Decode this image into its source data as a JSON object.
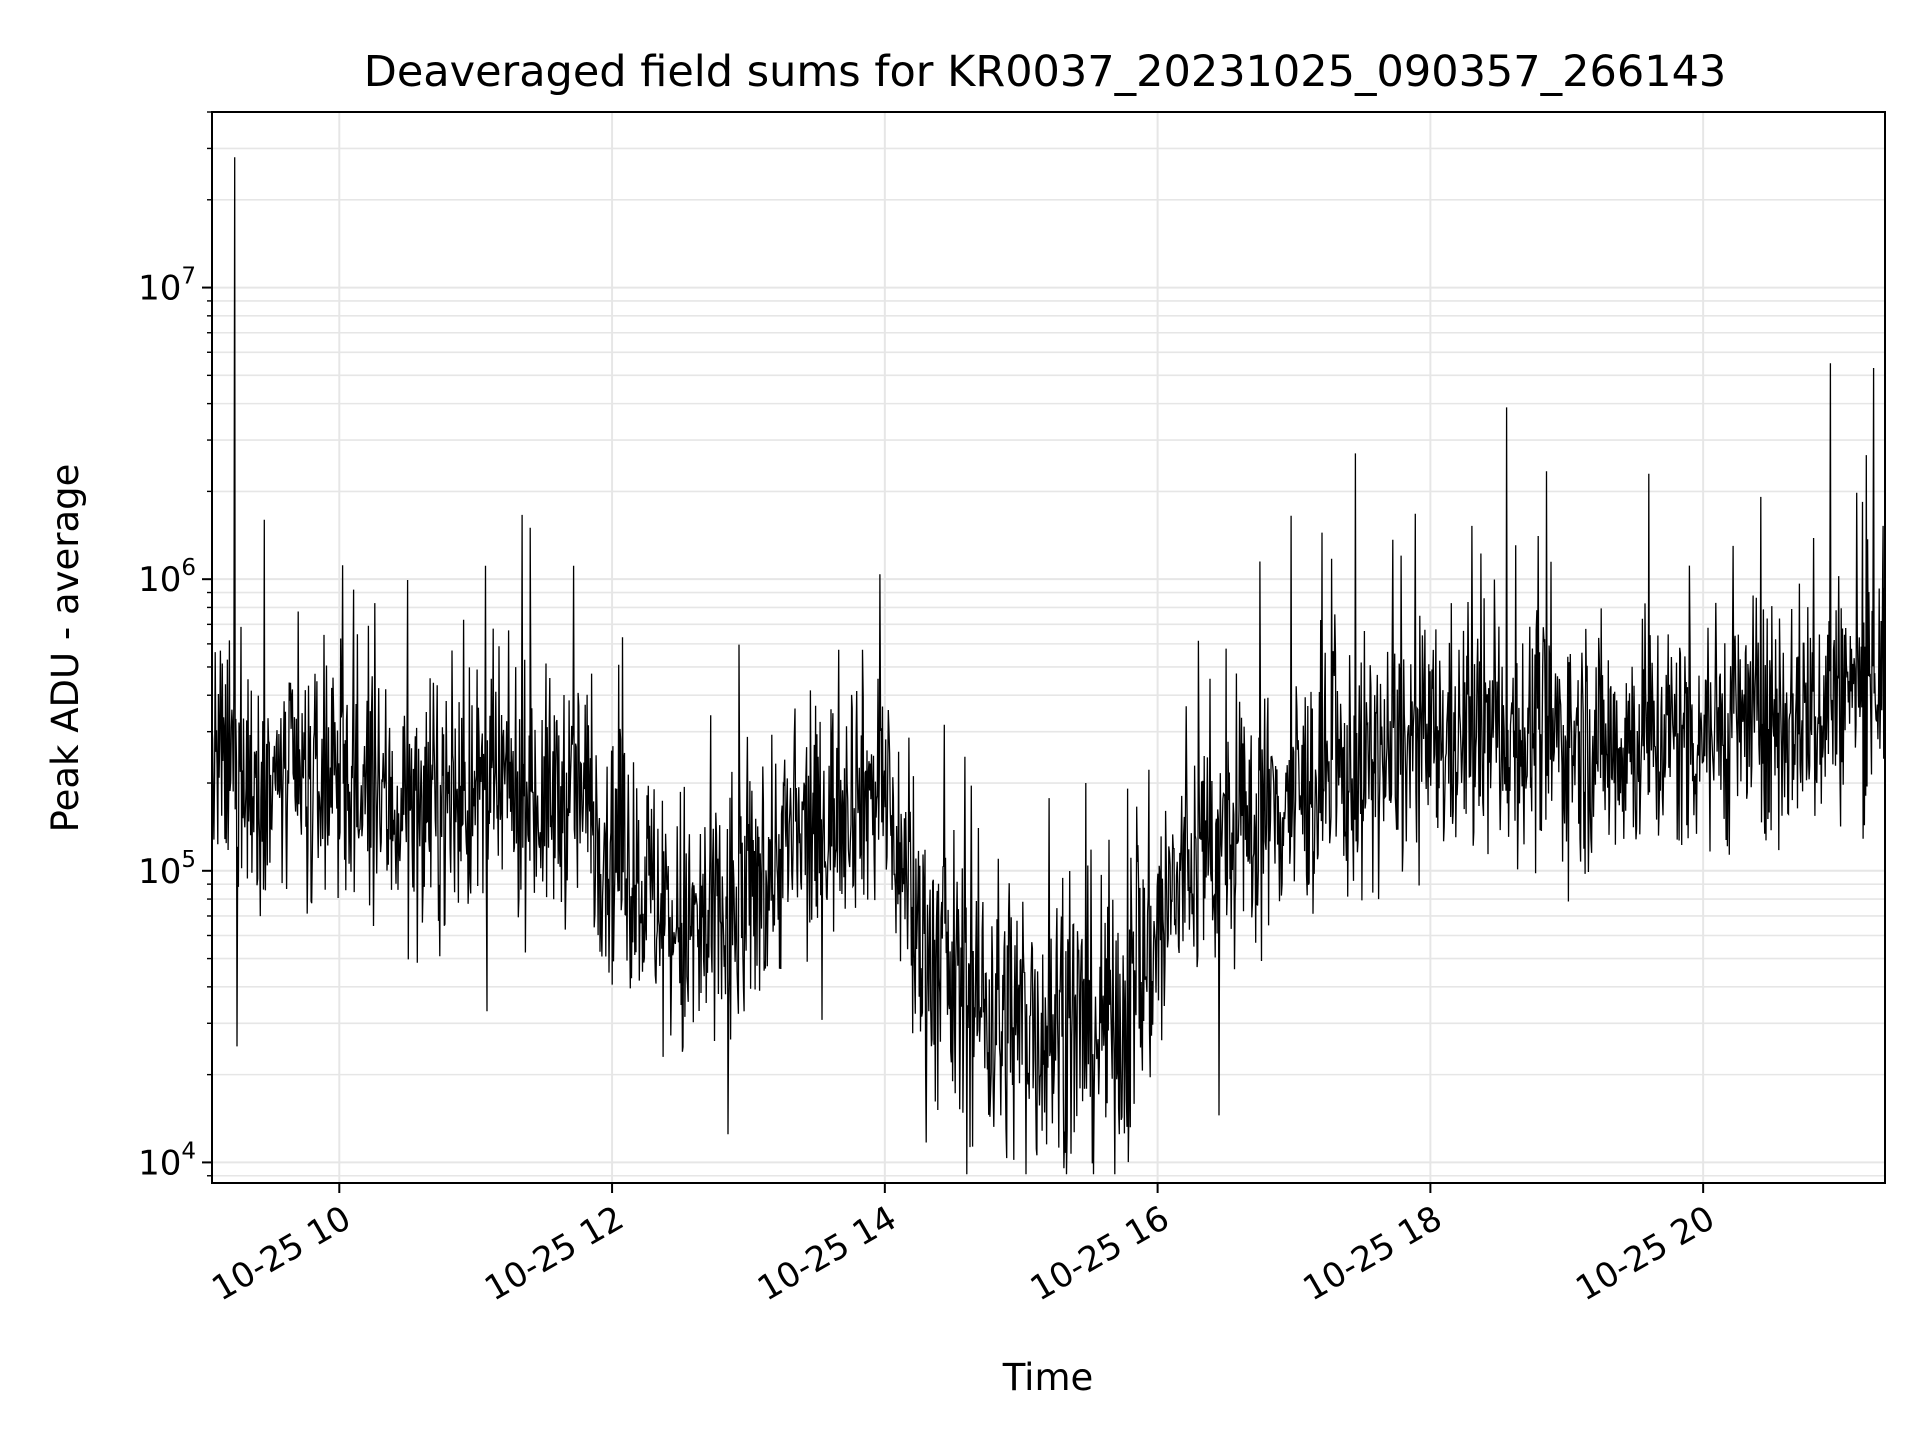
{
  "chart_data": {
    "type": "line",
    "title": "Deaveraged field sums for KR0037_20231025_090357_266143",
    "xlabel": "Time",
    "ylabel": "Peak ADU - average",
    "xlim": [
      "2023-10-25T09:04",
      "2023-10-25T21:20"
    ],
    "yscale": "log",
    "ylim": [
      8500,
      40000000
    ],
    "grid": true,
    "line_color": "#000000",
    "grid_color": "#e6e6e6",
    "x_ticks": [
      {
        "value": "2023-10-25T10:00",
        "label": "10-25 10"
      },
      {
        "value": "2023-10-25T12:00",
        "label": "10-25 12"
      },
      {
        "value": "2023-10-25T14:00",
        "label": "10-25 14"
      },
      {
        "value": "2023-10-25T16:00",
        "label": "10-25 16"
      },
      {
        "value": "2023-10-25T18:00",
        "label": "10-25 18"
      },
      {
        "value": "2023-10-25T20:00",
        "label": "10-25 20"
      }
    ],
    "y_ticks": [
      {
        "value": 10000,
        "base": "10",
        "exp": "4"
      },
      {
        "value": 100000,
        "base": "10",
        "exp": "5"
      },
      {
        "value": 1000000,
        "base": "10",
        "exp": "6"
      },
      {
        "value": 10000000,
        "base": "10",
        "exp": "7"
      }
    ],
    "series": [
      {
        "x": [
          "2023-10-25T09:04",
          "2023-10-25T09:15",
          "2023-10-25T09:30",
          "2023-10-25T09:45",
          "2023-10-25T10:00",
          "2023-10-25T10:15",
          "2023-10-25T10:30",
          "2023-10-25T10:45",
          "2023-10-25T11:00",
          "2023-10-25T11:15",
          "2023-10-25T11:30",
          "2023-10-25T11:45",
          "2023-10-25T12:00",
          "2023-10-25T12:15",
          "2023-10-25T12:30",
          "2023-10-25T12:45",
          "2023-10-25T13:00",
          "2023-10-25T13:15",
          "2023-10-25T13:30",
          "2023-10-25T13:45",
          "2023-10-25T14:00",
          "2023-10-25T14:15",
          "2023-10-25T14:30",
          "2023-10-25T14:45",
          "2023-10-25T15:00",
          "2023-10-25T15:15",
          "2023-10-25T15:30",
          "2023-10-25T15:45",
          "2023-10-25T16:00",
          "2023-10-25T16:15",
          "2023-10-25T16:30",
          "2023-10-25T16:45",
          "2023-10-25T17:00",
          "2023-10-25T17:15",
          "2023-10-25T17:30",
          "2023-10-25T17:45",
          "2023-10-25T18:00",
          "2023-10-25T18:15",
          "2023-10-25T18:30",
          "2023-10-25T18:45",
          "2023-10-25T19:00",
          "2023-10-25T19:15",
          "2023-10-25T19:30",
          "2023-10-25T19:45",
          "2023-10-25T20:00",
          "2023-10-25T20:15",
          "2023-10-25T20:30",
          "2023-10-25T20:45",
          "2023-10-25T21:00",
          "2023-10-25T21:15",
          "2023-10-25T21:20"
        ],
        "y": [
          230000,
          210000,
          200000,
          190000,
          190000,
          170000,
          160000,
          170000,
          180000,
          190000,
          170000,
          190000,
          120000,
          90000,
          60000,
          60000,
          80000,
          120000,
          130000,
          200000,
          180000,
          60000,
          40000,
          35000,
          30000,
          30000,
          28000,
          32000,
          60000,
          110000,
          120000,
          150000,
          180000,
          200000,
          220000,
          250000,
          270000,
          290000,
          300000,
          290000,
          280000,
          270000,
          280000,
          290000,
          300000,
          320000,
          330000,
          350000,
          400000,
          450000,
          520000
        ],
        "spikes": [
          {
            "x": "2023-10-25T09:14",
            "y": 28000000
          },
          {
            "x": "2023-10-25T09:15",
            "y": 25000
          },
          {
            "x": "2023-10-25T09:27",
            "y": 1600000
          },
          {
            "x": "2023-10-25T11:24",
            "y": 1500000
          },
          {
            "x": "2023-10-25T11:05",
            "y": 33000
          },
          {
            "x": "2023-10-25T12:51",
            "y": 12500
          },
          {
            "x": "2023-10-25T14:51",
            "y": 14500
          },
          {
            "x": "2023-10-25T15:48",
            "y": 13200
          },
          {
            "x": "2023-10-25T16:27",
            "y": 14500
          },
          {
            "x": "2023-10-25T16:45",
            "y": 1150000
          },
          {
            "x": "2023-10-25T17:27",
            "y": 2700000
          },
          {
            "x": "2023-10-25T20:56",
            "y": 5500000
          },
          {
            "x": "2023-10-25T21:15",
            "y": 5300000
          },
          {
            "x": "2023-10-25T21:19",
            "y": 1100000
          }
        ]
      }
    ]
  }
}
